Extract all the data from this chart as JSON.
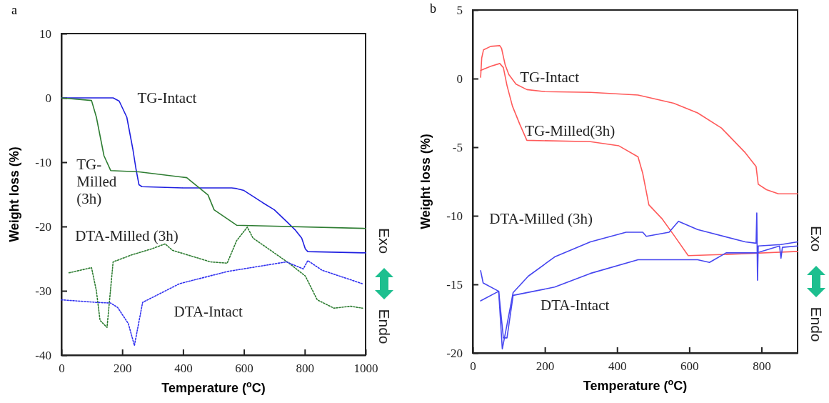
{
  "chart_data": [
    {
      "type": "line",
      "title": "a",
      "xlabel": "Temperature ($^{o}$C)",
      "ylabel": "Weight loss (%)",
      "xlim": [
        0,
        1000
      ],
      "ylim": [
        -40,
        10
      ],
      "xticks": [
        0,
        200,
        400,
        600,
        800,
        1000
      ],
      "yticks": [
        -40,
        -30,
        -20,
        -10,
        0,
        10
      ],
      "grid": false,
      "series": [
        {
          "name": "TG-Intact",
          "color": "#1f1fe0",
          "line_style": "solid",
          "x": [
            0,
            170,
            190,
            215,
            235,
            245,
            255,
            265,
            400,
            560,
            576,
            600,
            662,
            700,
            740,
            770,
            790,
            802,
            810,
            1000
          ],
          "values": [
            0,
            0,
            -0.5,
            -3,
            -8,
            -11,
            -13.5,
            -13.8,
            -14,
            -14,
            -14.1,
            -14.4,
            -16.3,
            -17.4,
            -19.2,
            -20.6,
            -21.8,
            -23.5,
            -23.9,
            -24.1
          ]
        },
        {
          "name": "TG-Milled (3h)",
          "color": "#2e7d32",
          "line_style": "solid",
          "x": [
            0,
            99,
            115,
            140,
            162,
            255,
            412,
            435,
            482,
            502,
            576,
            1000
          ],
          "values": [
            0,
            -0.4,
            -3,
            -9,
            -11.3,
            -11.5,
            -12.4,
            -13.3,
            -15.1,
            -17.4,
            -19.8,
            -20.3
          ]
        },
        {
          "name": "DTA-Milled (3h)",
          "color": "#2e7d32",
          "line_style": "dotted",
          "x": [
            25,
            99,
            115,
            127,
            150,
            170,
            232,
            295,
            341,
            365,
            490,
            545,
            576,
            611,
            630,
            748,
            802,
            841,
            896,
            951,
            990
          ],
          "values": [
            -27.2,
            -26.4,
            -30,
            -34.6,
            -35.7,
            -25.5,
            -24.4,
            -23.5,
            -22.7,
            -23.7,
            -25.5,
            -25.7,
            -22.2,
            -20.1,
            -21.8,
            -25.7,
            -27.7,
            -31.4,
            -32.7,
            -32.4,
            -32.7
          ]
        },
        {
          "name": "DTA-Intact",
          "color": "#3030f0",
          "line_style": "dotted",
          "x": [
            0,
            115,
            162,
            185,
            220,
            240,
            267,
            388,
            545,
            740,
            795,
            810,
            857,
            990
          ],
          "values": [
            -31.4,
            -31.8,
            -31.9,
            -32.6,
            -35.1,
            -38.5,
            -31.8,
            -28.9,
            -27,
            -25.5,
            -26.6,
            -25.3,
            -26.8,
            -28.9
          ]
        }
      ],
      "annotations": [
        "Exo",
        "Endo"
      ]
    },
    {
      "type": "line",
      "title": "b",
      "xlabel": "Temperature ($^{o}$C)",
      "ylabel": "Weight loss (%)",
      "xlim": [
        0,
        900
      ],
      "ylim": [
        -20,
        5
      ],
      "xticks": [
        0,
        200,
        400,
        600,
        800
      ],
      "yticks": [
        -20,
        -15,
        -10,
        -5,
        0,
        5
      ],
      "grid": false,
      "series": [
        {
          "name": "TG-Intact",
          "color": "#ff5a5a",
          "line_style": "solid",
          "x": [
            22,
            25,
            30,
            50,
            75,
            80,
            90,
            100,
            120,
            150,
            200,
            326,
            458,
            557,
            623,
            689,
            755,
            785,
            791,
            814,
            847,
            900
          ],
          "values": [
            0.1,
            1.5,
            2.1,
            2.35,
            2.4,
            2.2,
            1,
            0.3,
            -0.4,
            -0.8,
            -0.95,
            -1,
            -1.2,
            -1.8,
            -2.5,
            -3.6,
            -5.4,
            -6.4,
            -7.7,
            -8.1,
            -8.4,
            -8.4
          ]
        },
        {
          "name": "TG-Milled(3h)",
          "color": "#ff5a5a",
          "line_style": "solid",
          "x": [
            22,
            50,
            75,
            85,
            95,
            110,
            130,
            150,
            326,
            405,
            458,
            471,
            488,
            524,
            557,
            597,
            722,
            900
          ],
          "values": [
            0.6,
            0.9,
            1.1,
            0.8,
            -0.5,
            -2,
            -3.3,
            -4.5,
            -4.6,
            -4.9,
            -5.7,
            -6.9,
            -9.2,
            -10.2,
            -11.4,
            -12.9,
            -12.8,
            -12.6
          ]
        },
        {
          "name": "DTA-Milled (3h)",
          "color": "#4646f0",
          "line_style": "solid",
          "x": [
            22,
            29,
            72,
            82,
            88,
            112,
            154,
            227,
            326,
            425,
            471,
            481,
            544,
            570,
            623,
            755,
            785,
            787,
            789,
            791,
            854,
            900
          ],
          "values": [
            -14,
            -14.9,
            -15.5,
            -19.7,
            -18.9,
            -15.6,
            -14.4,
            -13,
            -11.9,
            -11.2,
            -11.2,
            -11.5,
            -11.2,
            -10.4,
            -11,
            -11.9,
            -12,
            -9.8,
            -14.7,
            -12.2,
            -12.1,
            -11.9
          ]
        },
        {
          "name": "DTA-Intact",
          "color": "#4646f0",
          "line_style": "solid",
          "x": [
            22,
            72,
            85,
            95,
            112,
            227,
            326,
            458,
            623,
            656,
            702,
            788,
            850,
            854,
            858,
            900
          ],
          "values": [
            -16.2,
            -15.5,
            -18.9,
            -18.9,
            -15.8,
            -15.2,
            -14.2,
            -13.2,
            -13.2,
            -13.4,
            -12.7,
            -12.7,
            -12.2,
            -13.1,
            -12.3,
            -12.2
          ]
        }
      ],
      "annotations": [
        "Exo",
        "Endo"
      ]
    }
  ]
}
